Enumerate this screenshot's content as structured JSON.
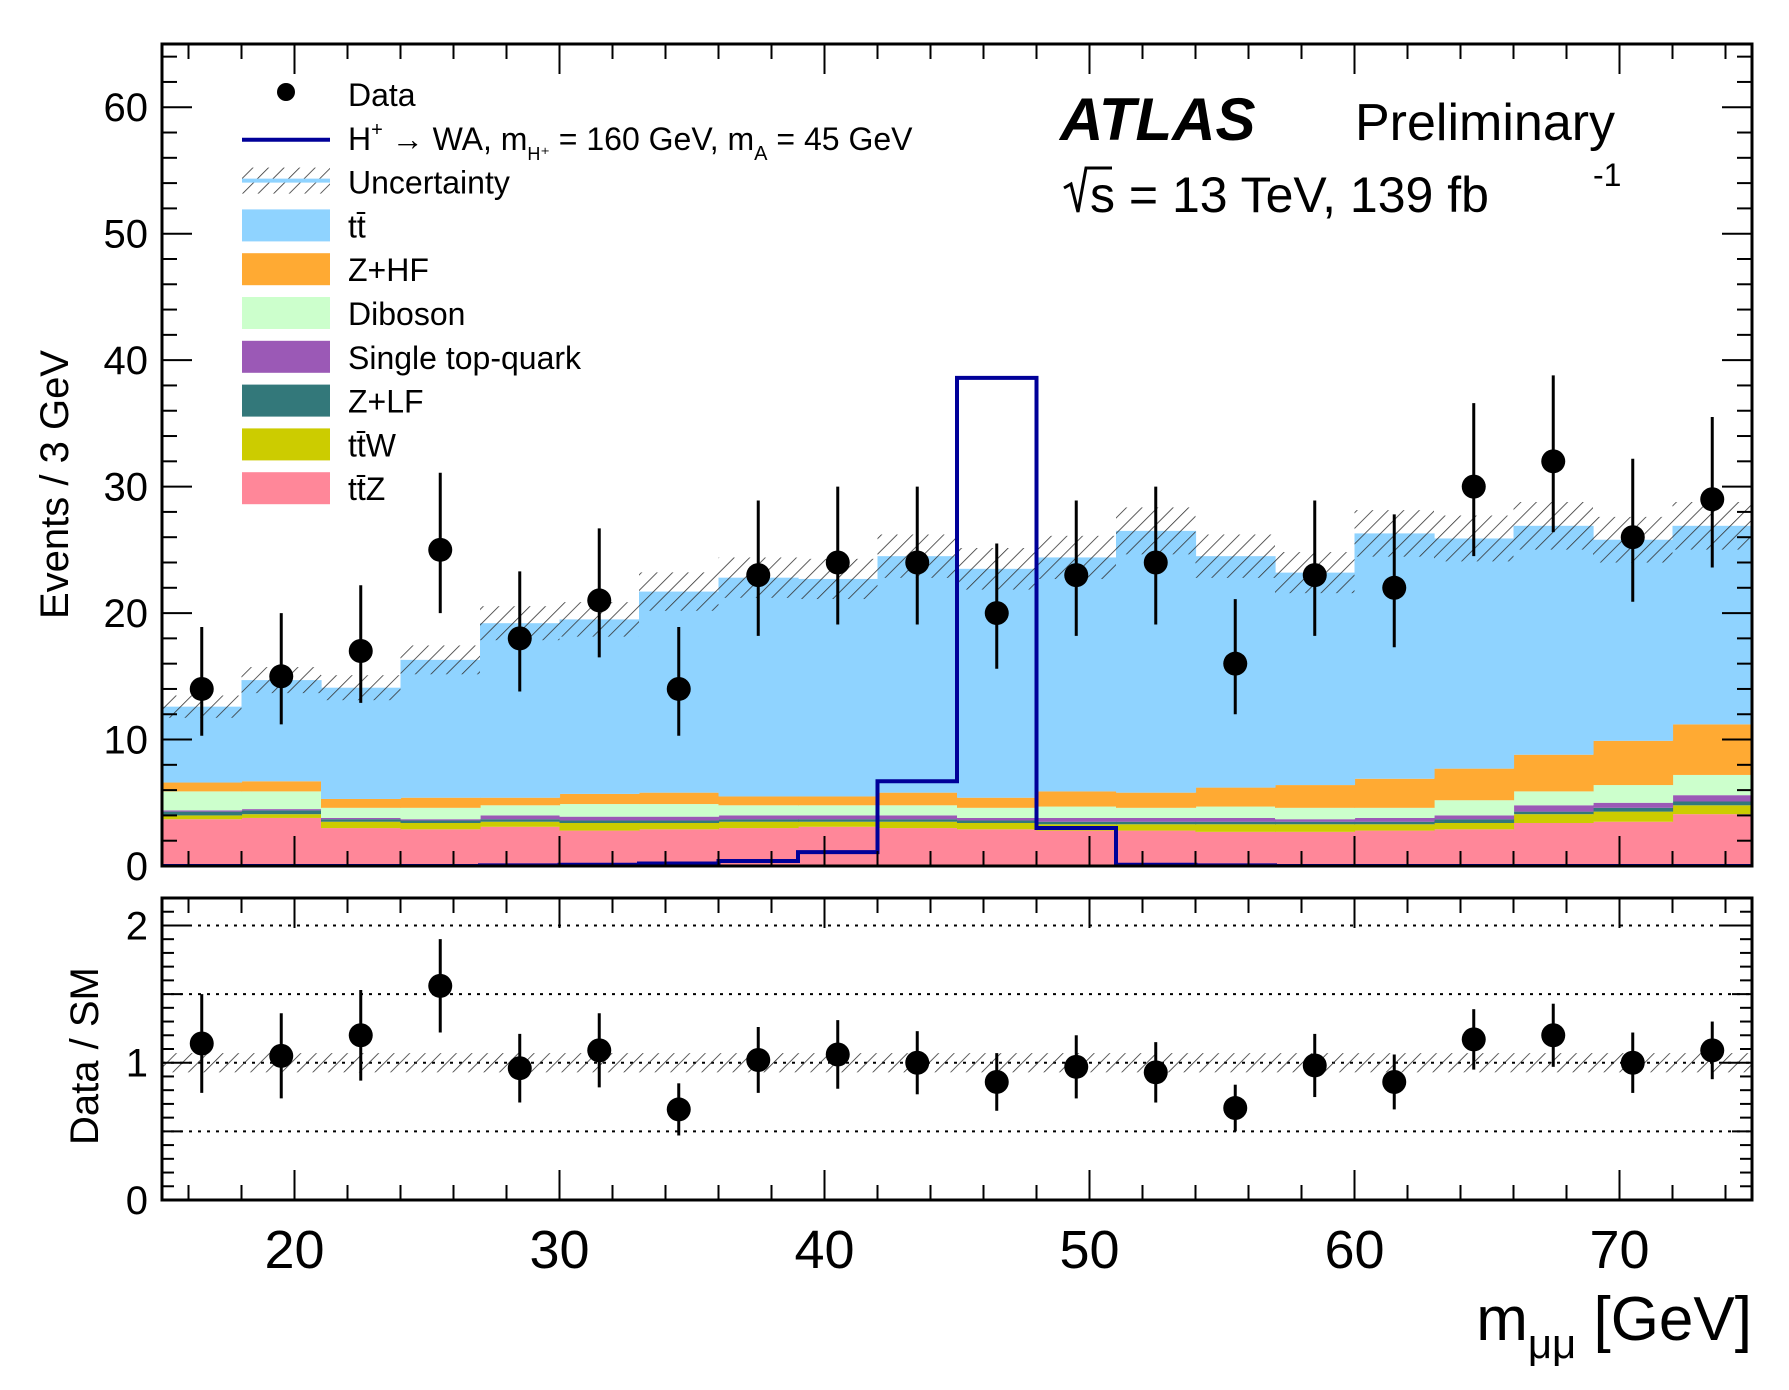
{
  "chart_data": [
    {
      "type": "stacked-histogram",
      "panel": "main",
      "xlabel": "m",
      "xlabel_sub": "μμ",
      "xlabel_unit": " [GeV]",
      "ylabel": "Events / 3 GeV",
      "xlim": [
        15,
        75
      ],
      "ylim": [
        0,
        65
      ],
      "x_ticks": [
        "20",
        "30",
        "40",
        "50",
        "60",
        "70"
      ],
      "y_ticks": [
        "0",
        "10",
        "20",
        "30",
        "40",
        "50",
        "60"
      ],
      "bin_edges": [
        15,
        18,
        21,
        24,
        27,
        30,
        33,
        36,
        39,
        42,
        45,
        48,
        51,
        54,
        57,
        60,
        63,
        66,
        69,
        72,
        75
      ],
      "experiment": "ATLAS",
      "status": "Preliminary",
      "energy": "√s = 13 TeV,   139  fb",
      "lumi_exp": "-1",
      "series": [
        {
          "name": "tt̄Z",
          "color": "#ff8799",
          "values": [
            3.7,
            3.8,
            3.0,
            2.9,
            3.1,
            2.8,
            2.9,
            3.0,
            3.1,
            3.0,
            2.9,
            2.8,
            2.8,
            2.7,
            2.7,
            2.8,
            2.9,
            3.4,
            3.5,
            4.1
          ]
        },
        {
          "name": "tt̄W",
          "color": "#cccc00",
          "values": [
            0.3,
            0.3,
            0.5,
            0.5,
            0.4,
            0.6,
            0.5,
            0.5,
            0.4,
            0.5,
            0.5,
            0.5,
            0.5,
            0.6,
            0.6,
            0.5,
            0.5,
            0.7,
            0.8,
            0.7
          ]
        },
        {
          "name": "Z+LF",
          "color": "#33787a",
          "values": [
            0.3,
            0.3,
            0.2,
            0.2,
            0.2,
            0.2,
            0.2,
            0.2,
            0.2,
            0.2,
            0.2,
            0.2,
            0.2,
            0.2,
            0.2,
            0.2,
            0.3,
            0.2,
            0.3,
            0.3
          ]
        },
        {
          "name": "Single top-quark",
          "color": "#9b59b6",
          "values": [
            0.1,
            0.1,
            0.1,
            0.1,
            0.3,
            0.3,
            0.3,
            0.3,
            0.3,
            0.3,
            0.2,
            0.3,
            0.3,
            0.3,
            0.2,
            0.3,
            0.3,
            0.5,
            0.4,
            0.5
          ]
        },
        {
          "name": "Diboson",
          "color": "#ccffcc",
          "values": [
            1.5,
            1.4,
            0.8,
            0.9,
            0.8,
            1.0,
            1.0,
            0.8,
            0.8,
            0.8,
            0.8,
            0.9,
            0.8,
            0.9,
            0.9,
            0.8,
            1.2,
            1.1,
            1.4,
            1.6
          ]
        },
        {
          "name": "Z+HF",
          "color": "#ffaa33",
          "values": [
            0.7,
            0.8,
            0.7,
            0.8,
            0.6,
            0.8,
            0.9,
            0.7,
            0.7,
            1.0,
            0.8,
            1.2,
            1.2,
            1.5,
            1.8,
            2.3,
            2.5,
            2.9,
            3.5,
            4.0
          ]
        },
        {
          "name": "tt̄",
          "color": "#8fd3ff",
          "values": [
            6.0,
            8.0,
            8.8,
            10.9,
            13.8,
            13.8,
            15.9,
            17.3,
            17.2,
            18.7,
            18.1,
            18.5,
            20.7,
            18.3,
            16.8,
            19.4,
            18.2,
            18.1,
            15.9,
            15.7
          ]
        }
      ],
      "signal": {
        "name": "H⁺ → WA, m_H⁺ = 160 GeV, m_A = 45 GeV",
        "color": "#000099",
        "values": [
          0,
          0,
          0,
          0,
          0.05,
          0.1,
          0.2,
          0.4,
          1.1,
          6.7,
          38.6,
          3.0,
          0.1,
          0.05,
          0,
          0,
          0,
          0,
          0,
          0
        ]
      },
      "data_points": {
        "name": "Data",
        "x": [
          16.5,
          19.5,
          22.5,
          25.5,
          28.5,
          31.5,
          34.5,
          37.5,
          40.5,
          43.5,
          46.5,
          49.5,
          52.5,
          55.5,
          58.5,
          61.5,
          64.5,
          67.5,
          70.5,
          73.5
        ],
        "y": [
          14,
          15,
          17,
          25,
          18,
          21,
          14,
          23,
          24,
          24,
          20,
          23,
          24,
          16,
          23,
          22,
          30,
          32,
          26,
          29
        ],
        "err_up": [
          4.9,
          5.0,
          5.2,
          6.1,
          5.3,
          5.7,
          4.9,
          5.9,
          6.0,
          6.0,
          5.5,
          5.9,
          6.0,
          5.1,
          5.9,
          5.8,
          6.6,
          6.8,
          6.2,
          6.5
        ],
        "err_down": [
          3.7,
          3.8,
          4.1,
          5.0,
          4.2,
          4.5,
          3.7,
          4.8,
          4.9,
          4.9,
          4.4,
          4.8,
          4.9,
          4.0,
          4.8,
          4.7,
          5.5,
          5.6,
          5.1,
          5.4
        ]
      },
      "uncertainty_rel": 0.07
    },
    {
      "type": "scatter",
      "panel": "ratio",
      "ylabel": "Data / SM",
      "ylim": [
        0,
        2.2
      ],
      "y_ticks": [
        "0",
        "1",
        "2"
      ],
      "reference_lines": [
        0.5,
        1.0,
        1.5,
        2.0
      ],
      "x": [
        16.5,
        19.5,
        22.5,
        25.5,
        28.5,
        31.5,
        34.5,
        37.5,
        40.5,
        43.5,
        46.5,
        49.5,
        52.5,
        55.5,
        58.5,
        61.5,
        64.5,
        67.5,
        70.5,
        73.5
      ],
      "y": [
        1.14,
        1.05,
        1.2,
        1.56,
        0.96,
        1.09,
        0.66,
        1.02,
        1.06,
        1.0,
        0.86,
        0.97,
        0.93,
        0.67,
        0.98,
        0.86,
        1.17,
        1.2,
        1.0,
        1.09
      ],
      "err": [
        0.36,
        0.31,
        0.33,
        0.34,
        0.25,
        0.27,
        0.19,
        0.24,
        0.25,
        0.23,
        0.21,
        0.23,
        0.22,
        0.17,
        0.23,
        0.2,
        0.22,
        0.23,
        0.22,
        0.21
      ]
    }
  ],
  "legend": {
    "items": [
      {
        "label": "Data",
        "kind": "marker"
      },
      {
        "label": "H",
        "sup": "+",
        "rest": " → WA, m",
        "sub1": "H⁺",
        "rest2": " = 160 GeV, m",
        "sub2": "A",
        "rest3": " = 45 GeV",
        "kind": "line",
        "color": "#000099"
      },
      {
        "label": "Uncertainty",
        "kind": "hatch"
      },
      {
        "label": "tt̄",
        "kind": "fill",
        "color": "#8fd3ff"
      },
      {
        "label": "Z+HF",
        "kind": "fill",
        "color": "#ffaa33"
      },
      {
        "label": "Diboson",
        "kind": "fill",
        "color": "#ccffcc"
      },
      {
        "label": "Single top-quark",
        "kind": "fill",
        "color": "#9b59b6"
      },
      {
        "label": "Z+LF",
        "kind": "fill",
        "color": "#33787a"
      },
      {
        "label": "tt̄W",
        "kind": "fill",
        "color": "#cccc00"
      },
      {
        "label": "tt̄Z",
        "kind": "fill",
        "color": "#ff8799"
      }
    ]
  }
}
